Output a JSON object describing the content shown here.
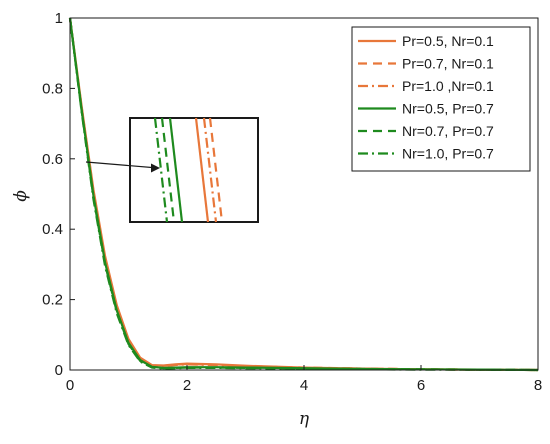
{
  "chart_data": {
    "type": "line",
    "title": "",
    "xlabel": "η",
    "ylabel": "ϕ",
    "xlim": [
      0,
      8
    ],
    "ylim": [
      0,
      1
    ],
    "xticks": [
      "0",
      "2",
      "4",
      "6",
      "8"
    ],
    "yticks": [
      "0",
      "0.2",
      "0.4",
      "0.6",
      "0.8",
      "1"
    ],
    "grid": false,
    "legend_position": "top-right",
    "colors": {
      "orange": "#e8773a",
      "green": "#1e8a1e"
    },
    "series": [
      {
        "name": "Pr=0.5, Nr=0.1",
        "color": "#e8773a",
        "dash": "solid",
        "x": [
          0,
          0.2,
          0.4,
          0.6,
          0.8,
          1.0,
          1.2,
          1.4,
          1.6,
          1.8,
          2.0,
          2.5,
          3.0,
          4.0,
          5.0,
          6.0,
          7.0,
          8.0
        ],
        "y": [
          1.0,
          0.748,
          0.513,
          0.323,
          0.184,
          0.088,
          0.035,
          0.014,
          0.013,
          0.016,
          0.018,
          0.016,
          0.012,
          0.007,
          0.004,
          0.002,
          0.001,
          0.0
        ]
      },
      {
        "name": "Pr=0.7, Nr=0.1",
        "color": "#e8773a",
        "dash": "dashed",
        "x": [
          0,
          0.2,
          0.4,
          0.6,
          0.8,
          1.0,
          1.2,
          1.4,
          1.6,
          1.8,
          2.0,
          2.5,
          3.0,
          4.0,
          5.0,
          6.0,
          7.0,
          8.0
        ],
        "y": [
          1.0,
          0.745,
          0.508,
          0.318,
          0.18,
          0.085,
          0.033,
          0.013,
          0.012,
          0.015,
          0.017,
          0.015,
          0.011,
          0.007,
          0.004,
          0.002,
          0.001,
          0.0
        ]
      },
      {
        "name": "Pr=1.0 ,Nr=0.1",
        "color": "#e8773a",
        "dash": "dashdot",
        "x": [
          0,
          0.2,
          0.4,
          0.6,
          0.8,
          1.0,
          1.2,
          1.4,
          1.6,
          1.8,
          2.0,
          2.5,
          3.0,
          4.0,
          5.0,
          6.0,
          7.0,
          8.0
        ],
        "y": [
          1.0,
          0.742,
          0.503,
          0.313,
          0.176,
          0.082,
          0.031,
          0.012,
          0.011,
          0.014,
          0.016,
          0.014,
          0.01,
          0.006,
          0.004,
          0.002,
          0.001,
          0.0
        ]
      },
      {
        "name": "Nr=0.5, Pr=0.7",
        "color": "#1e8a1e",
        "dash": "solid",
        "x": [
          0,
          0.2,
          0.4,
          0.6,
          0.8,
          1.0,
          1.2,
          1.4,
          1.6,
          1.8,
          2.0,
          2.5,
          3.0,
          4.0,
          5.0,
          6.0,
          7.0,
          8.0
        ],
        "y": [
          1.0,
          0.738,
          0.496,
          0.305,
          0.169,
          0.077,
          0.028,
          0.009,
          0.006,
          0.007,
          0.008,
          0.008,
          0.007,
          0.005,
          0.003,
          0.002,
          0.001,
          0.0
        ]
      },
      {
        "name": "Nr=0.7, Pr=0.7",
        "color": "#1e8a1e",
        "dash": "dashed",
        "x": [
          0,
          0.2,
          0.4,
          0.6,
          0.8,
          1.0,
          1.2,
          1.4,
          1.6,
          1.8,
          2.0,
          2.5,
          3.0,
          4.0,
          5.0,
          6.0,
          7.0,
          8.0
        ],
        "y": [
          1.0,
          0.735,
          0.491,
          0.3,
          0.165,
          0.074,
          0.026,
          0.008,
          0.005,
          0.006,
          0.007,
          0.007,
          0.006,
          0.004,
          0.003,
          0.002,
          0.001,
          0.0
        ]
      },
      {
        "name": "Nr=1.0, Pr=0.7",
        "color": "#1e8a1e",
        "dash": "dashdot",
        "x": [
          0,
          0.2,
          0.4,
          0.6,
          0.8,
          1.0,
          1.2,
          1.4,
          1.6,
          1.8,
          2.0,
          2.5,
          3.0,
          4.0,
          5.0,
          6.0,
          7.0,
          8.0
        ],
        "y": [
          1.0,
          0.732,
          0.486,
          0.295,
          0.161,
          0.071,
          0.024,
          0.007,
          0.004,
          0.005,
          0.006,
          0.006,
          0.005,
          0.004,
          0.002,
          0.001,
          0.001,
          0.0
        ]
      }
    ]
  }
}
